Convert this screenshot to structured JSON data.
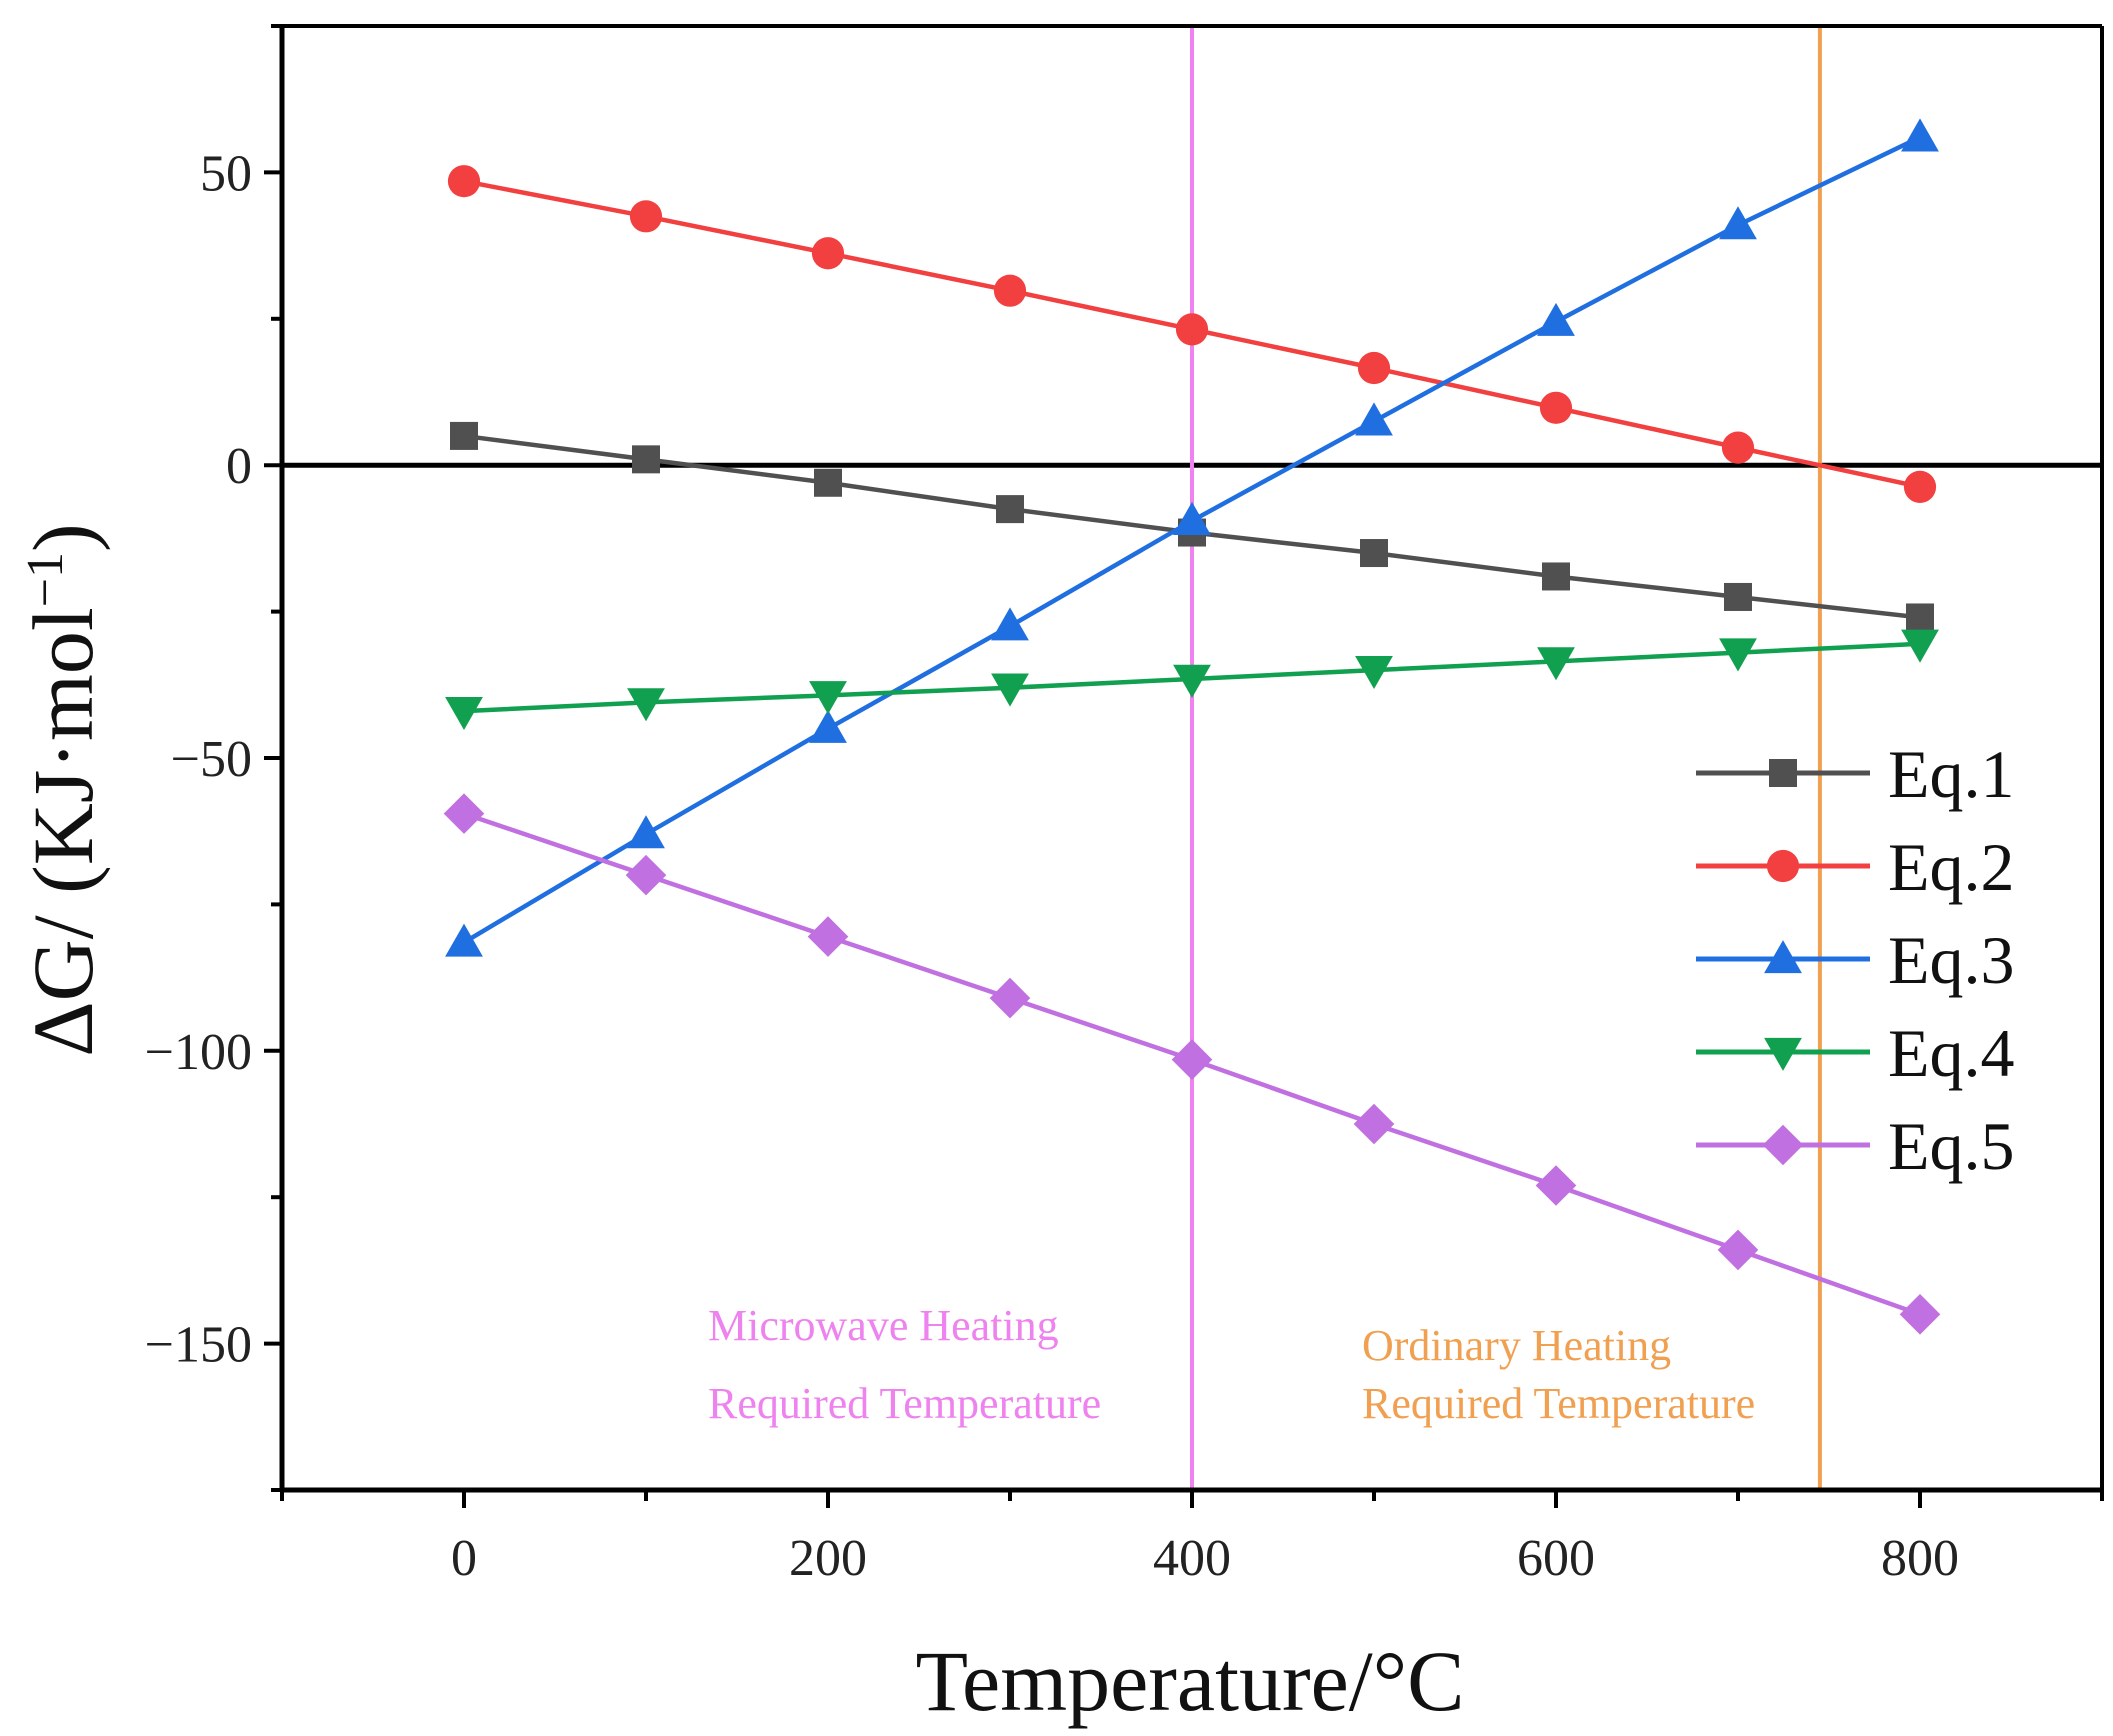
{
  "chart_data": {
    "type": "line",
    "x": [
      0,
      100,
      200,
      300,
      400,
      500,
      600,
      700,
      800
    ],
    "series": [
      {
        "name": "Eq.1",
        "color": "#505050",
        "marker": "square",
        "values": [
          5,
          1,
          -3,
          -7.5,
          -11.5,
          -15,
          -19,
          -22.5,
          -26
        ]
      },
      {
        "name": "Eq.2",
        "color": "#f24040",
        "marker": "circle",
        "values": [
          48.5,
          42.5,
          36.2,
          29.8,
          23.2,
          16.6,
          9.8,
          3,
          -3.7
        ]
      },
      {
        "name": "Eq.3",
        "color": "#1f6fe0",
        "marker": "triangle-up",
        "values": [
          -81.5,
          -63,
          -45,
          -27.5,
          -9.5,
          7.5,
          24.5,
          41,
          56
        ]
      },
      {
        "name": "Eq.4",
        "color": "#10a050",
        "marker": "triangle-down",
        "values": [
          -42,
          -40.5,
          -39.3,
          -38,
          -36.5,
          -35,
          -33.5,
          -32,
          -30.5
        ]
      },
      {
        "name": "Eq.5",
        "color": "#c070e0",
        "marker": "diamond",
        "values": [
          -59.5,
          -70,
          -80.5,
          -91,
          -101.5,
          -112.5,
          -123,
          -134,
          -145
        ]
      }
    ],
    "xlabel": "Temperature/°C",
    "ylabel": "ΔG/ (KJ·mol",
    "ylabel_sup": "−1",
    "ylabel_close": ")",
    "xlim": [
      -100,
      900
    ],
    "ylim": [
      -175,
      75
    ],
    "xticks": [
      0,
      200,
      400,
      600,
      800
    ],
    "xtick_labels": [
      "0",
      "200",
      "400",
      "600",
      "800"
    ],
    "yticks": [
      50,
      0,
      -50,
      -100,
      -150
    ],
    "ytick_labels": [
      "50",
      "0",
      "−50",
      "−100",
      "−150"
    ],
    "zero_line": 0,
    "legend_position": "center-right",
    "vlines": [
      {
        "x": 400,
        "color": "#ee82ee",
        "label_line1": "Microwave Heating",
        "label_line2": "Required Temperature"
      },
      {
        "x": 745,
        "color": "#f0a050",
        "label_line1": "Ordinary Heating",
        "label_line2": "Required Temperature"
      }
    ]
  }
}
